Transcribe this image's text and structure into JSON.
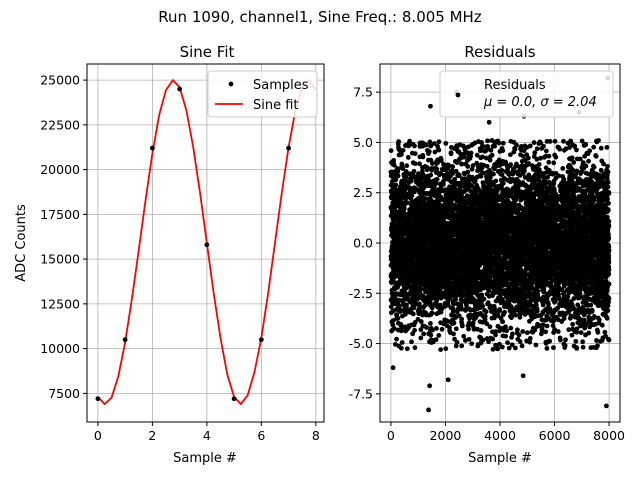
{
  "figure": {
    "suptitle": "Run 1090, channel1, Sine Freq.: 8.005 MHz"
  },
  "chart_data": [
    {
      "type": "scatter",
      "title": "Sine Fit",
      "xlabel": "Sample #",
      "ylabel": "ADC Counts",
      "xlim": [
        -0.4,
        8.3
      ],
      "ylim": [
        5900,
        25900
      ],
      "xticks": [
        0,
        2,
        4,
        6,
        8
      ],
      "yticks": [
        7500,
        10000,
        12500,
        15000,
        17500,
        20000,
        22500,
        25000
      ],
      "grid": true,
      "legend_position": "top-right",
      "legend": [
        "Samples",
        "Sine fit"
      ],
      "series": [
        {
          "name": "Samples",
          "kind": "points",
          "color": "#000000",
          "x": [
            0,
            1,
            2,
            3,
            4,
            5,
            6,
            7
          ],
          "y": [
            7200,
            10500,
            21200,
            24500,
            15800,
            7200,
            10500,
            21200
          ]
        },
        {
          "name": "Sine fit",
          "kind": "line",
          "color": "#ff0000",
          "x": [
            0,
            0.25,
            0.5,
            0.75,
            1,
            1.25,
            1.5,
            1.75,
            2,
            2.25,
            2.5,
            2.75,
            3,
            3.25,
            3.5,
            3.75,
            4,
            4.25,
            4.5,
            4.75,
            5,
            5.25,
            5.5,
            5.75,
            6,
            6.25,
            6.5,
            6.75,
            7,
            7.25,
            7.5,
            7.75,
            8
          ],
          "y": [
            7300,
            6900,
            7250,
            8450,
            10350,
            12800,
            15500,
            18300,
            20900,
            23050,
            24450,
            25000,
            24600,
            23300,
            21250,
            18700,
            15900,
            13100,
            10600,
            8550,
            7300,
            6900,
            7400,
            8700,
            10600,
            13100,
            15900,
            18700,
            21250,
            23300,
            24600,
            25000,
            24450
          ]
        }
      ]
    },
    {
      "type": "scatter",
      "title": "Residuals",
      "xlabel": "Sample #",
      "ylabel": "",
      "xlim": [
        -400,
        8400
      ],
      "ylim": [
        -8.9,
        8.9
      ],
      "xticks": [
        0,
        2000,
        4000,
        6000,
        8000
      ],
      "yticks": [
        -7.5,
        -5.0,
        -2.5,
        0.0,
        2.5,
        5.0,
        7.5
      ],
      "grid": true,
      "legend_position": "top-right",
      "legend": [
        "Residuals",
        "μ = 0.0, σ = 2.04"
      ],
      "series": [
        {
          "name": "Residuals",
          "kind": "points",
          "color": "#000000",
          "count": 8000,
          "mean": 0.0,
          "sigma": 2.04
        }
      ],
      "highlighted_points": [
        {
          "x": 1380,
          "y": -8.3
        },
        {
          "x": 1420,
          "y": -7.1
        },
        {
          "x": 2100,
          "y": -6.8
        },
        {
          "x": 4850,
          "y": -6.6
        },
        {
          "x": 7900,
          "y": -8.1
        },
        {
          "x": 7950,
          "y": 8.2
        },
        {
          "x": 1450,
          "y": 6.8
        },
        {
          "x": 2400,
          "y": 7.5
        },
        {
          "x": 4880,
          "y": 6.3
        },
        {
          "x": 6900,
          "y": 6.5
        },
        {
          "x": 80,
          "y": -6.2
        },
        {
          "x": 3600,
          "y": 6.0
        }
      ]
    }
  ]
}
